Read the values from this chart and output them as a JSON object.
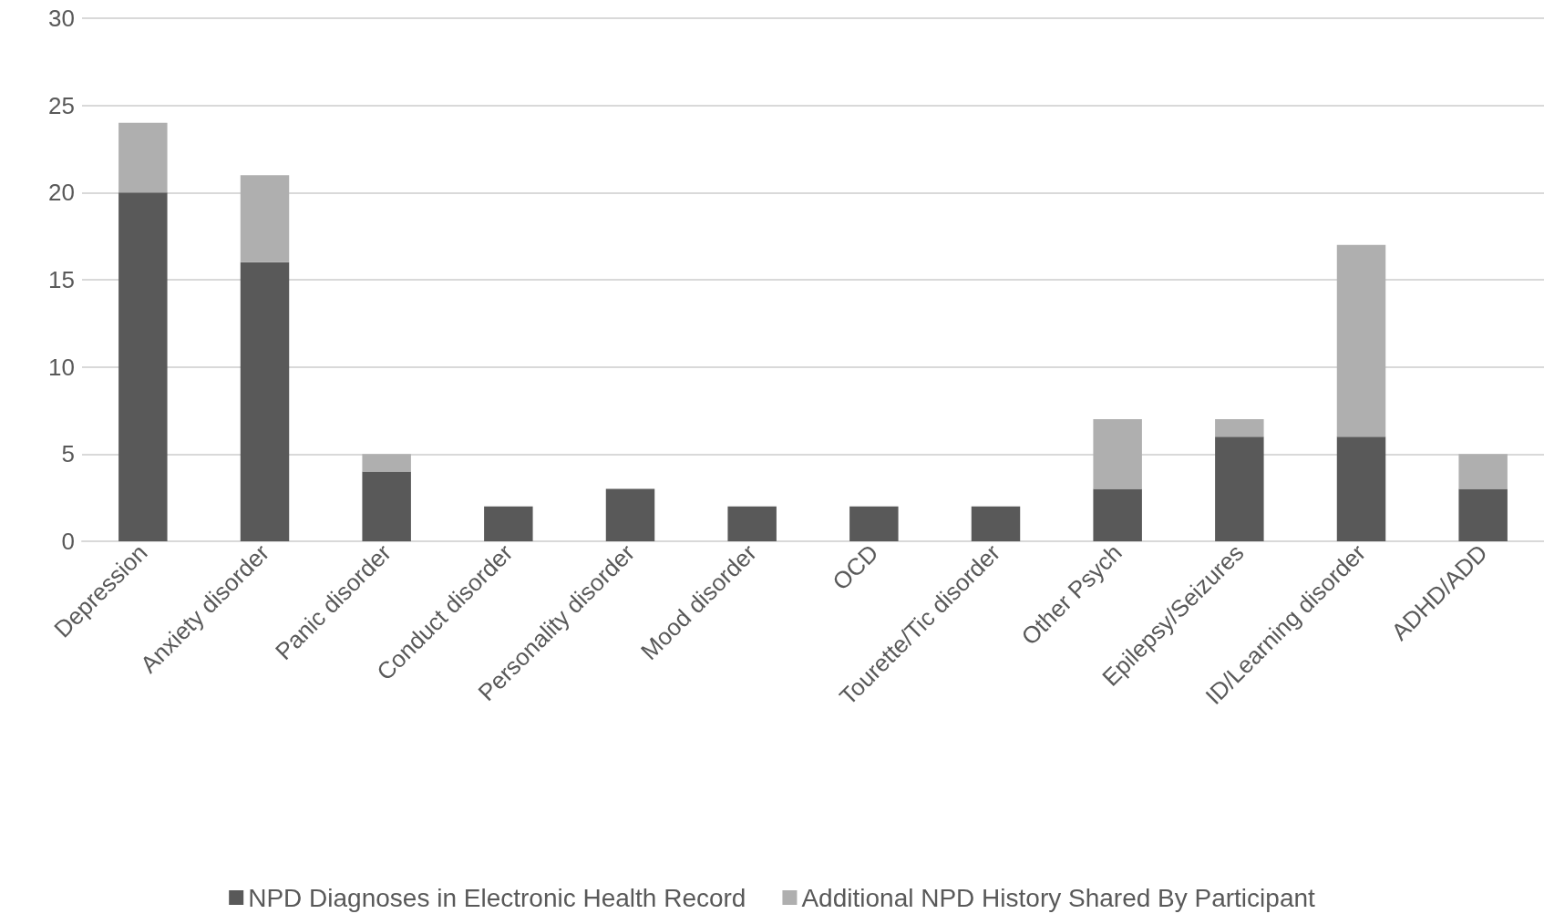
{
  "chart_data": {
    "type": "bar",
    "stacked": true,
    "categories": [
      "Depression",
      "Anxiety disorder",
      "Panic disorder",
      "Conduct disorder",
      "Personality disorder",
      "Mood disorder",
      "OCD",
      "Tourette/Tic disorder",
      "Other Psych",
      "Epilepsy/Seizures",
      "ID/Learning disorder",
      "ADHD/ADD"
    ],
    "series": [
      {
        "name": "NPD Diagnoses in Electronic Health Record",
        "color": "#595959",
        "values": [
          20,
          16,
          4,
          2,
          3,
          2,
          2,
          2,
          3,
          6,
          6,
          3
        ]
      },
      {
        "name": "Additional NPD History Shared By Participant",
        "color": "#afafaf",
        "values": [
          4,
          5,
          1,
          0,
          0,
          0,
          0,
          0,
          4,
          1,
          11,
          2
        ]
      }
    ],
    "ylim": [
      0,
      30
    ],
    "yticks": [
      0,
      5,
      10,
      15,
      20,
      25,
      30
    ],
    "grid": "y",
    "legend": "bottom"
  }
}
